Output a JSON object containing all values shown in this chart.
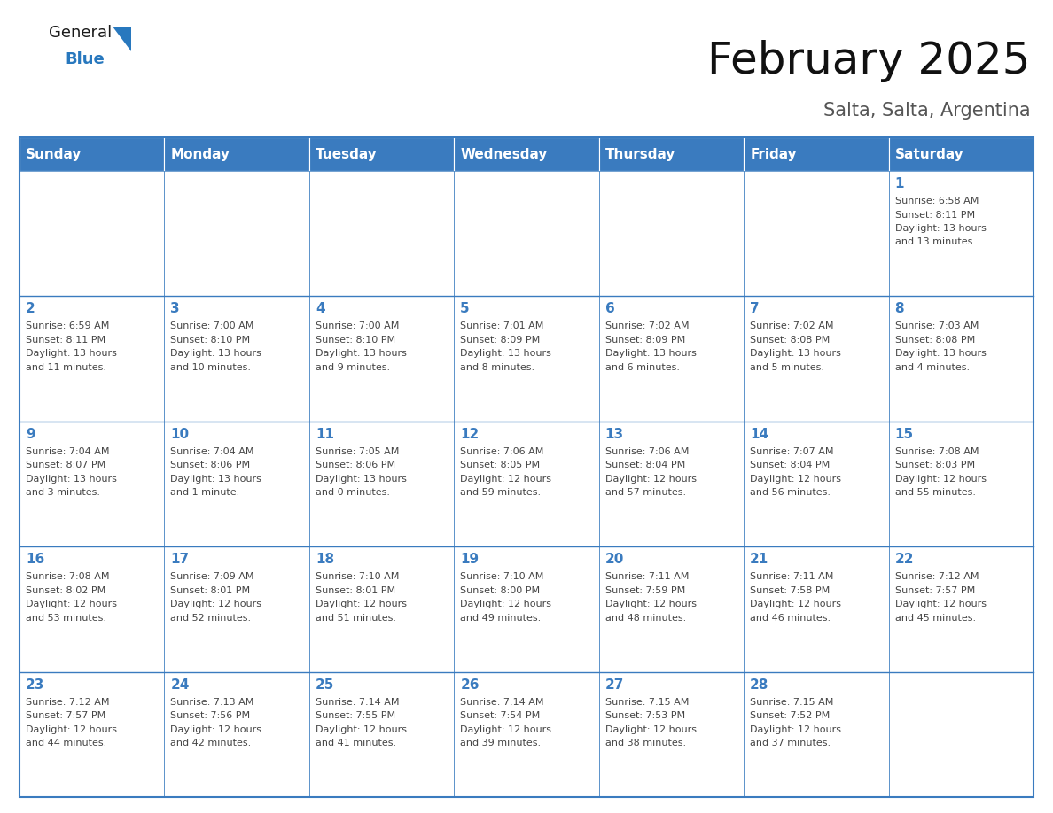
{
  "title": "February 2025",
  "subtitle": "Salta, Salta, Argentina",
  "header_color": "#3a7bbf",
  "header_text_color": "#ffffff",
  "border_color": "#3a7bbf",
  "day_number_color": "#3a7bbf",
  "cell_text_color": "#444444",
  "cell_bg_color": "#ffffff",
  "days_of_week": [
    "Sunday",
    "Monday",
    "Tuesday",
    "Wednesday",
    "Thursday",
    "Friday",
    "Saturday"
  ],
  "calendar_data": [
    [
      null,
      null,
      null,
      null,
      null,
      null,
      {
        "day": "1",
        "sunrise": "6:58 AM",
        "sunset": "8:11 PM",
        "daylight1": "13 hours",
        "daylight2": "and 13 minutes."
      }
    ],
    [
      {
        "day": "2",
        "sunrise": "6:59 AM",
        "sunset": "8:11 PM",
        "daylight1": "13 hours",
        "daylight2": "and 11 minutes."
      },
      {
        "day": "3",
        "sunrise": "7:00 AM",
        "sunset": "8:10 PM",
        "daylight1": "13 hours",
        "daylight2": "and 10 minutes."
      },
      {
        "day": "4",
        "sunrise": "7:00 AM",
        "sunset": "8:10 PM",
        "daylight1": "13 hours",
        "daylight2": "and 9 minutes."
      },
      {
        "day": "5",
        "sunrise": "7:01 AM",
        "sunset": "8:09 PM",
        "daylight1": "13 hours",
        "daylight2": "and 8 minutes."
      },
      {
        "day": "6",
        "sunrise": "7:02 AM",
        "sunset": "8:09 PM",
        "daylight1": "13 hours",
        "daylight2": "and 6 minutes."
      },
      {
        "day": "7",
        "sunrise": "7:02 AM",
        "sunset": "8:08 PM",
        "daylight1": "13 hours",
        "daylight2": "and 5 minutes."
      },
      {
        "day": "8",
        "sunrise": "7:03 AM",
        "sunset": "8:08 PM",
        "daylight1": "13 hours",
        "daylight2": "and 4 minutes."
      }
    ],
    [
      {
        "day": "9",
        "sunrise": "7:04 AM",
        "sunset": "8:07 PM",
        "daylight1": "13 hours",
        "daylight2": "and 3 minutes."
      },
      {
        "day": "10",
        "sunrise": "7:04 AM",
        "sunset": "8:06 PM",
        "daylight1": "13 hours",
        "daylight2": "and 1 minute."
      },
      {
        "day": "11",
        "sunrise": "7:05 AM",
        "sunset": "8:06 PM",
        "daylight1": "13 hours",
        "daylight2": "and 0 minutes."
      },
      {
        "day": "12",
        "sunrise": "7:06 AM",
        "sunset": "8:05 PM",
        "daylight1": "12 hours",
        "daylight2": "and 59 minutes."
      },
      {
        "day": "13",
        "sunrise": "7:06 AM",
        "sunset": "8:04 PM",
        "daylight1": "12 hours",
        "daylight2": "and 57 minutes."
      },
      {
        "day": "14",
        "sunrise": "7:07 AM",
        "sunset": "8:04 PM",
        "daylight1": "12 hours",
        "daylight2": "and 56 minutes."
      },
      {
        "day": "15",
        "sunrise": "7:08 AM",
        "sunset": "8:03 PM",
        "daylight1": "12 hours",
        "daylight2": "and 55 minutes."
      }
    ],
    [
      {
        "day": "16",
        "sunrise": "7:08 AM",
        "sunset": "8:02 PM",
        "daylight1": "12 hours",
        "daylight2": "and 53 minutes."
      },
      {
        "day": "17",
        "sunrise": "7:09 AM",
        "sunset": "8:01 PM",
        "daylight1": "12 hours",
        "daylight2": "and 52 minutes."
      },
      {
        "day": "18",
        "sunrise": "7:10 AM",
        "sunset": "8:01 PM",
        "daylight1": "12 hours",
        "daylight2": "and 51 minutes."
      },
      {
        "day": "19",
        "sunrise": "7:10 AM",
        "sunset": "8:00 PM",
        "daylight1": "12 hours",
        "daylight2": "and 49 minutes."
      },
      {
        "day": "20",
        "sunrise": "7:11 AM",
        "sunset": "7:59 PM",
        "daylight1": "12 hours",
        "daylight2": "and 48 minutes."
      },
      {
        "day": "21",
        "sunrise": "7:11 AM",
        "sunset": "7:58 PM",
        "daylight1": "12 hours",
        "daylight2": "and 46 minutes."
      },
      {
        "day": "22",
        "sunrise": "7:12 AM",
        "sunset": "7:57 PM",
        "daylight1": "12 hours",
        "daylight2": "and 45 minutes."
      }
    ],
    [
      {
        "day": "23",
        "sunrise": "7:12 AM",
        "sunset": "7:57 PM",
        "daylight1": "12 hours",
        "daylight2": "and 44 minutes."
      },
      {
        "day": "24",
        "sunrise": "7:13 AM",
        "sunset": "7:56 PM",
        "daylight1": "12 hours",
        "daylight2": "and 42 minutes."
      },
      {
        "day": "25",
        "sunrise": "7:14 AM",
        "sunset": "7:55 PM",
        "daylight1": "12 hours",
        "daylight2": "and 41 minutes."
      },
      {
        "day": "26",
        "sunrise": "7:14 AM",
        "sunset": "7:54 PM",
        "daylight1": "12 hours",
        "daylight2": "and 39 minutes."
      },
      {
        "day": "27",
        "sunrise": "7:15 AM",
        "sunset": "7:53 PM",
        "daylight1": "12 hours",
        "daylight2": "and 38 minutes."
      },
      {
        "day": "28",
        "sunrise": "7:15 AM",
        "sunset": "7:52 PM",
        "daylight1": "12 hours",
        "daylight2": "and 37 minutes."
      },
      null
    ]
  ],
  "title_fontsize": 36,
  "subtitle_fontsize": 15,
  "header_fontsize": 11,
  "day_num_fontsize": 11,
  "cell_text_fontsize": 8,
  "logo_general_color": "#1a1a1a",
  "logo_blue_color": "#2878be",
  "logo_triangle_color": "#2878be",
  "fig_width": 11.88,
  "fig_height": 9.18,
  "fig_dpi": 100
}
